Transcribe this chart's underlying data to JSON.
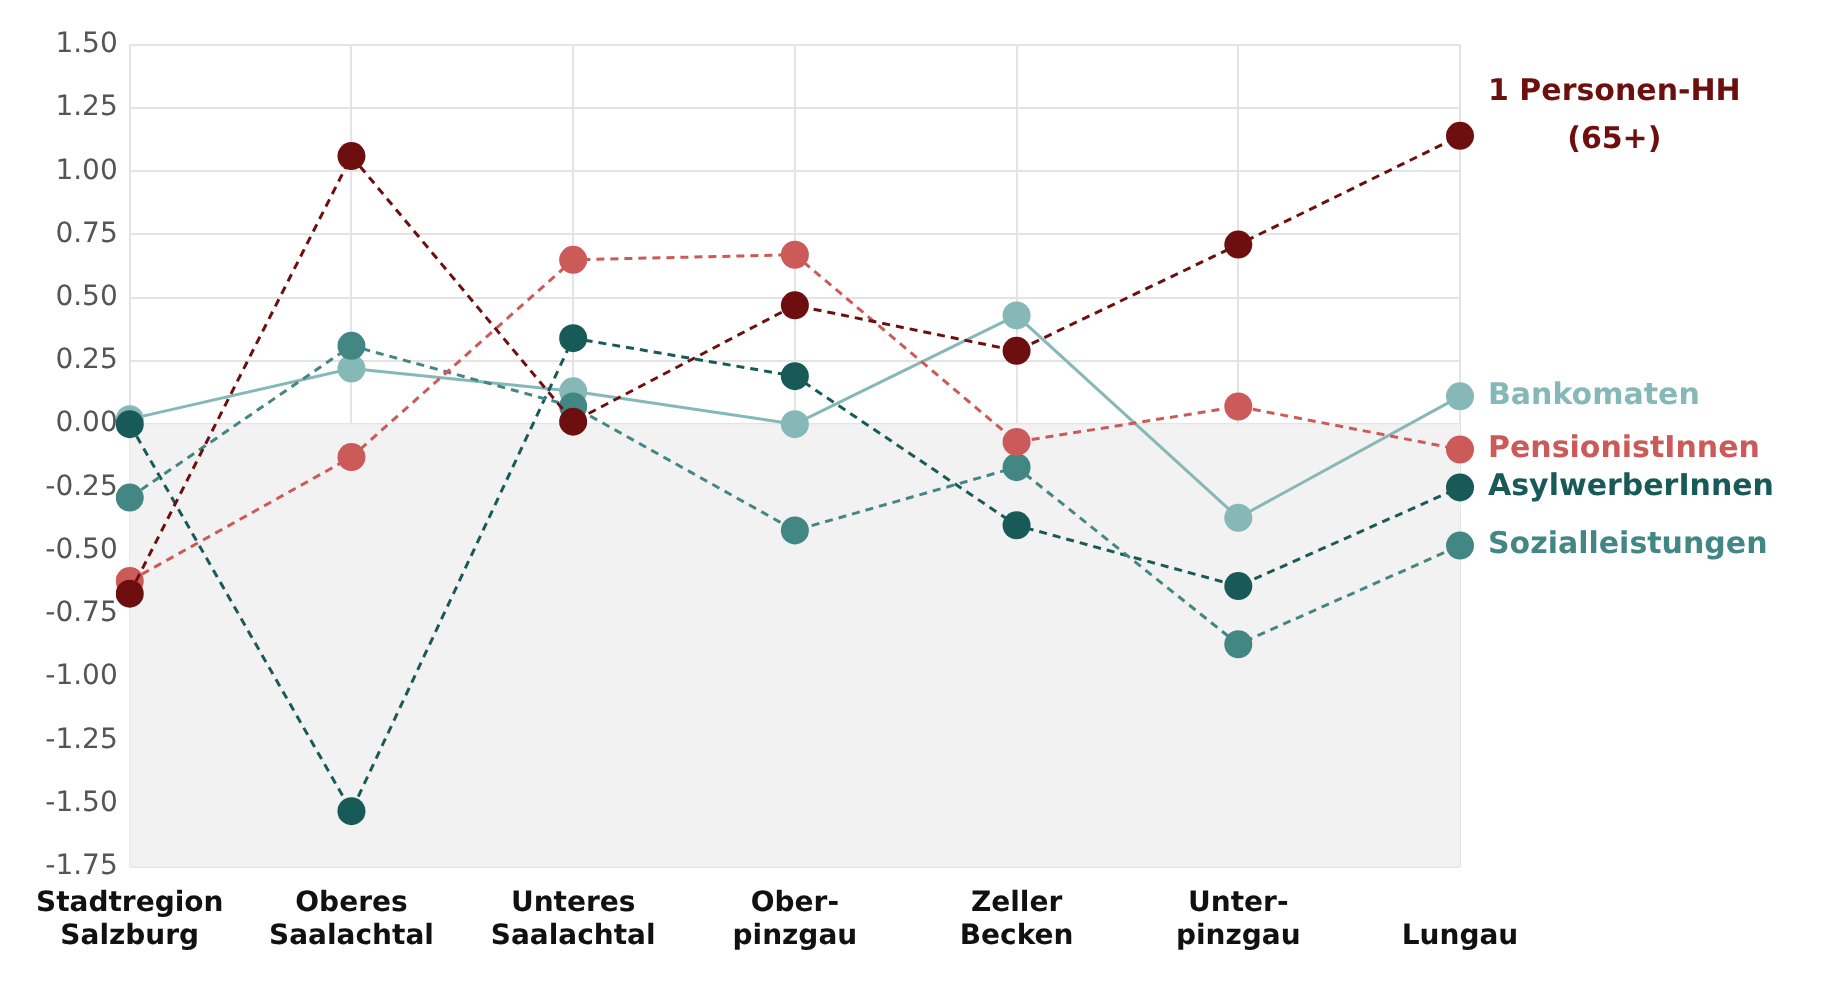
{
  "chart_data": {
    "type": "line",
    "categories": [
      "Stadtregion Salzburg",
      "Oberes Saalachtal",
      "Unteres Saalachtal",
      "Ober- pinzgau",
      "Zeller Becken",
      "Unter- pinzgau",
      "Lungau"
    ],
    "series": [
      {
        "name": "1 Personen-HH (65+)",
        "color": "#6e0f0f",
        "line_style": "dashed",
        "values": [
          -0.67,
          1.06,
          0.01,
          0.47,
          0.29,
          0.71,
          1.14
        ]
      },
      {
        "name": "PensionistInnen",
        "color": "#cc5a58",
        "line_style": "dashed",
        "values": [
          -0.62,
          -0.13,
          0.65,
          0.67,
          -0.07,
          0.07,
          -0.1
        ]
      },
      {
        "name": "Sozialleistungen",
        "color": "#438785",
        "line_style": "dashed",
        "values": [
          -0.29,
          0.31,
          0.07,
          -0.42,
          -0.17,
          -0.87,
          -0.48
        ]
      },
      {
        "name": "AsylwerberInnen",
        "color": "#185a58",
        "line_style": "dashed",
        "values": [
          0.0,
          -1.53,
          0.34,
          0.19,
          -0.4,
          -0.64,
          -0.25
        ]
      },
      {
        "name": "Bankomaten",
        "color": "#85b8b6",
        "line_style": "solid",
        "values": [
          0.02,
          0.22,
          0.13,
          0.0,
          0.43,
          -0.37,
          0.11
        ]
      }
    ],
    "ylim": [
      -1.75,
      1.5
    ],
    "yticks": [
      {
        "value": -1.75,
        "label": "-1.75"
      },
      {
        "value": -1.5,
        "label": "-1.50"
      },
      {
        "value": -1.25,
        "label": "-1.25"
      },
      {
        "value": -1,
        "label": "-1.00"
      },
      {
        "value": -0.75,
        "label": "-0.75"
      },
      {
        "value": -0.5,
        "label": "-0.50"
      },
      {
        "value": -0.25,
        "label": "-0.25"
      },
      {
        "value": 0,
        "label": "0.00"
      },
      {
        "value": 0.25,
        "label": "0.25"
      },
      {
        "value": 0.5,
        "label": "0.50"
      },
      {
        "value": 0.75,
        "label": "0.75"
      },
      {
        "value": 1,
        "label": "1.00"
      },
      {
        "value": 1.25,
        "label": "1.25"
      },
      {
        "value": 1.5,
        "label": "1.50"
      }
    ],
    "bands": [
      {
        "axis": "y",
        "from": -1.75,
        "to": 0,
        "color": "#f2f2f2"
      }
    ],
    "grid": true,
    "marker": "circle",
    "legend": false
  }
}
